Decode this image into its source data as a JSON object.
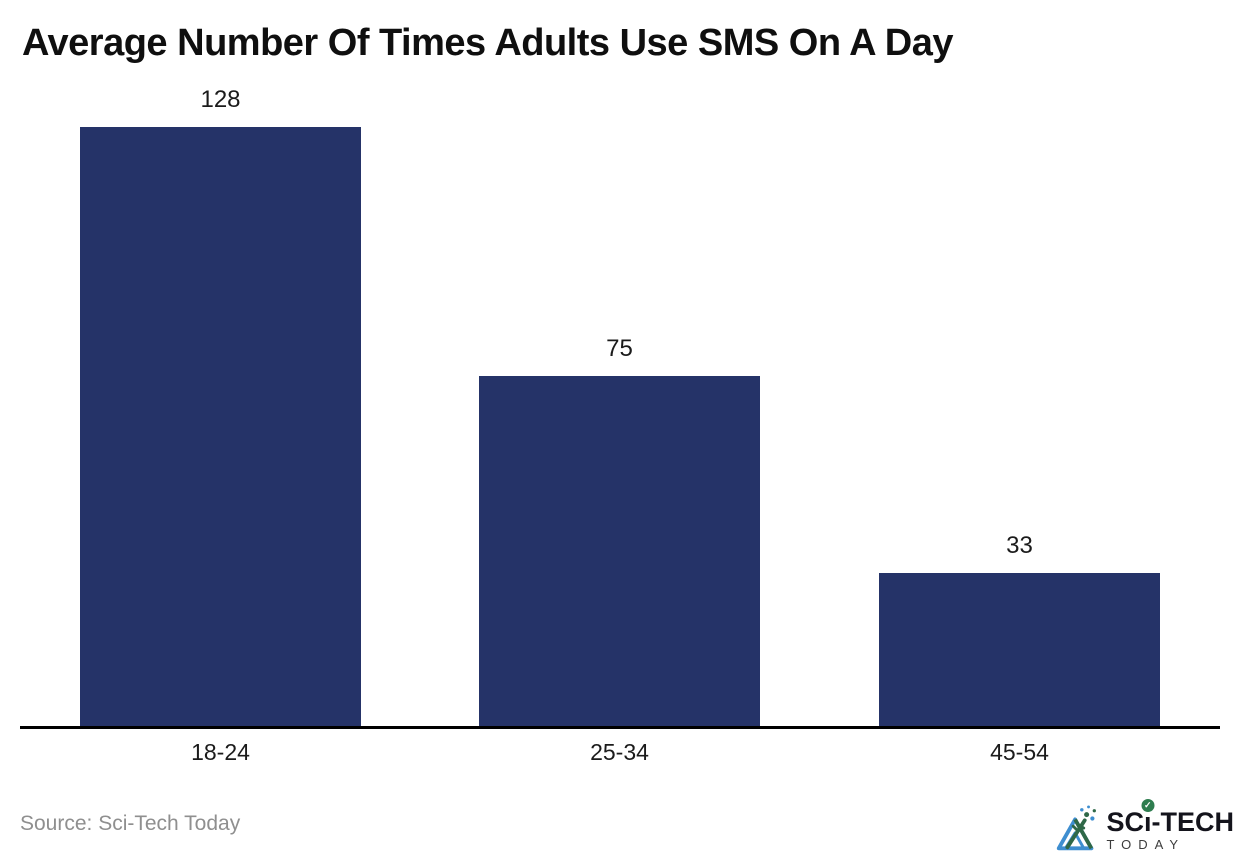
{
  "page": {
    "title": "Average Number Of Times Adults Use SMS On A Day",
    "source": "Source: Sci-Tech Today"
  },
  "logo": {
    "name": "Sci-Tech Today",
    "text_sc": "SC",
    "text_i": "ı",
    "text_tech": "-TECH",
    "subtitle": "TODAY",
    "check_mark": "✓"
  },
  "colors": {
    "bar": "#253368",
    "axis": "#000000",
    "title_text": "#0f0f0f",
    "label_text": "#1b1b1b",
    "source_text": "#8f8f8f",
    "logo_text": "#14141c",
    "logo_subtitle": "#3c3c3c",
    "logo_blue": "#3e8ed0",
    "logo_green": "#2f6847",
    "logo_check": "#2e7d4f"
  },
  "chart_data": {
    "type": "bar",
    "title": "Average Number Of Times Adults Use SMS On A Day",
    "categories": [
      "18-24",
      "25-34",
      "45-54"
    ],
    "values": [
      128,
      75,
      33
    ],
    "xlabel": "",
    "ylabel": "",
    "ylim": [
      0,
      136
    ],
    "grid": false,
    "legend": false,
    "value_labels": true,
    "bar_color": "#253368",
    "orientation": "vertical"
  }
}
